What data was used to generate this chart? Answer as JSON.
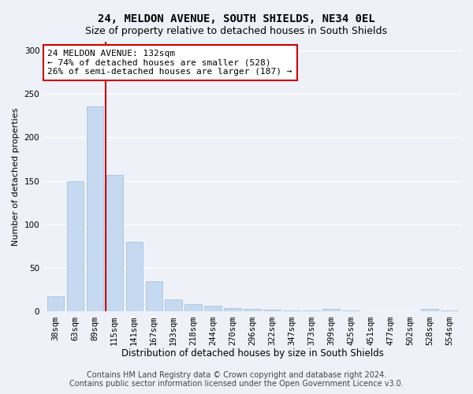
{
  "title": "24, MELDON AVENUE, SOUTH SHIELDS, NE34 0EL",
  "subtitle": "Size of property relative to detached houses in South Shields",
  "xlabel": "Distribution of detached houses by size in South Shields",
  "ylabel": "Number of detached properties",
  "categories": [
    "38sqm",
    "63sqm",
    "89sqm",
    "115sqm",
    "141sqm",
    "167sqm",
    "193sqm",
    "218sqm",
    "244sqm",
    "270sqm",
    "296sqm",
    "322sqm",
    "347sqm",
    "373sqm",
    "399sqm",
    "425sqm",
    "451sqm",
    "477sqm",
    "502sqm",
    "528sqm",
    "554sqm"
  ],
  "values": [
    18,
    150,
    235,
    157,
    80,
    35,
    14,
    9,
    7,
    4,
    3,
    2,
    1,
    1,
    3,
    1,
    0,
    0,
    0,
    3,
    1
  ],
  "bar_color": "#c5d9f0",
  "bar_edge_color": "#a0bbd8",
  "annotation_line1": "24 MELDON AVENUE: 132sqm",
  "annotation_line2": "← 74% of detached houses are smaller (528)",
  "annotation_line3": "26% of semi-detached houses are larger (187) →",
  "annotation_box_color": "#ffffff",
  "annotation_box_edge_color": "#cc0000",
  "vline_x": 2.55,
  "vline_color": "#cc0000",
  "ylim": [
    0,
    310
  ],
  "yticks": [
    0,
    50,
    100,
    150,
    200,
    250,
    300
  ],
  "footer_line1": "Contains HM Land Registry data © Crown copyright and database right 2024.",
  "footer_line2": "Contains public sector information licensed under the Open Government Licence v3.0.",
  "bg_color": "#eef2f8",
  "grid_color": "#ffffff",
  "title_fontsize": 10,
  "subtitle_fontsize": 9,
  "xlabel_fontsize": 8.5,
  "ylabel_fontsize": 8,
  "tick_fontsize": 7.5,
  "footer_fontsize": 7,
  "annot_fontsize": 8
}
